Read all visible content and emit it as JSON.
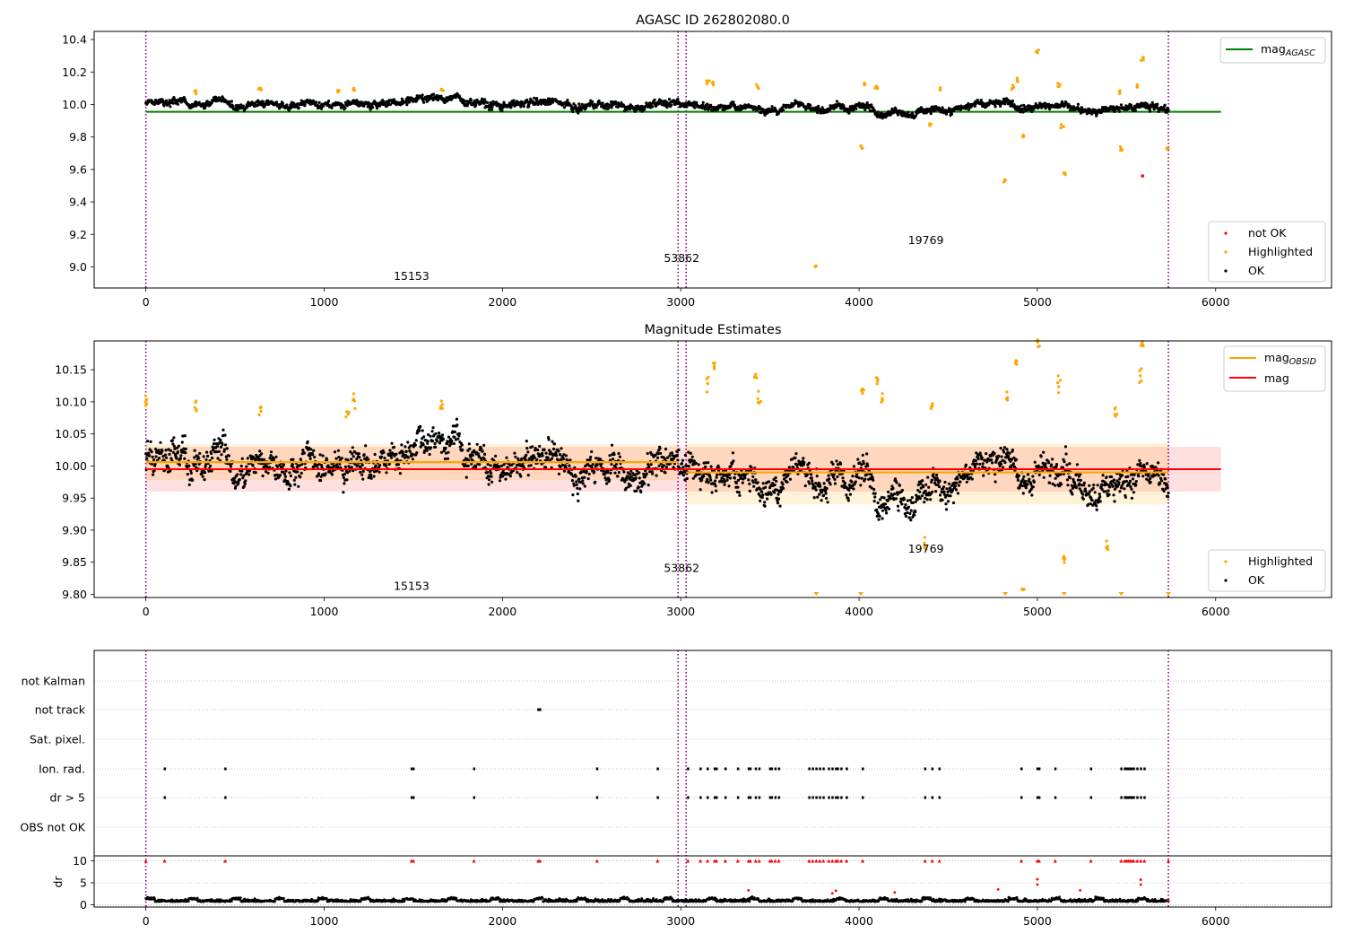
{
  "colors": {
    "ok": "#000000",
    "highlighted": "#ffa500",
    "not_ok": "#ff0000",
    "agasc_line": "#008000",
    "obsid_line": "#ffa500",
    "mean_line": "#ff0000",
    "boundary": "#800080",
    "grid": "#b0b0b0"
  },
  "chart_data": [
    {
      "type": "scatter",
      "title": "AGASC ID 262802080.0",
      "xlim": [
        -290,
        6650
      ],
      "ylim": [
        8.87,
        10.45
      ],
      "xticks": [
        0,
        1000,
        2000,
        3000,
        4000,
        5000,
        6000
      ],
      "yticks": [
        9.0,
        9.2,
        9.4,
        9.6,
        9.8,
        10.0,
        10.2,
        10.4
      ],
      "ytick_labels": [
        "9.0",
        "9.2",
        "9.4",
        "9.6",
        "9.8",
        "10.0",
        "10.2",
        "10.4"
      ],
      "boundaries": [
        0,
        2985,
        3030,
        5735
      ],
      "obsid_labels": [
        {
          "text": "15153",
          "x": 1490,
          "y": 8.92
        },
        {
          "text": "53862",
          "x": 3005,
          "y": 9.03
        },
        {
          "text": "19769",
          "x": 4375,
          "y": 9.14
        }
      ],
      "agasc_mag": {
        "value": 9.955,
        "x_range": [
          0,
          6030
        ]
      },
      "legend_top": {
        "label_main": "mag",
        "label_sub": "AGASC"
      },
      "legend_bottom": [
        "not OK",
        "Highlighted",
        "OK"
      ],
      "highlighted_points": [
        [
          280,
          10.08
        ],
        [
          640,
          10.09
        ],
        [
          1080,
          10.08
        ],
        [
          1165,
          10.09
        ],
        [
          1660,
          10.09
        ],
        [
          3150,
          10.14
        ],
        [
          3180,
          10.13
        ],
        [
          3430,
          10.11
        ],
        [
          3760,
          9.0
        ],
        [
          4010,
          9.74
        ],
        [
          4030,
          10.12
        ],
        [
          4100,
          10.11
        ],
        [
          4400,
          9.88
        ],
        [
          4450,
          10.1
        ],
        [
          4820,
          9.53
        ],
        [
          4860,
          10.11
        ],
        [
          4890,
          10.15
        ],
        [
          4920,
          9.81
        ],
        [
          5000,
          10.33
        ],
        [
          5120,
          10.12
        ],
        [
          5140,
          9.86
        ],
        [
          5150,
          9.58
        ],
        [
          5460,
          10.08
        ],
        [
          5470,
          9.73
        ],
        [
          5560,
          10.11
        ],
        [
          5590,
          10.28
        ],
        [
          5730,
          9.73
        ]
      ],
      "not_ok_points": [
        [
          5590,
          9.56
        ]
      ]
    },
    {
      "type": "scatter",
      "title": "Magnitude Estimates",
      "xlim": [
        -290,
        6650
      ],
      "ylim": [
        9.795,
        10.195
      ],
      "xticks": [
        0,
        1000,
        2000,
        3000,
        4000,
        5000,
        6000
      ],
      "yticks": [
        9.8,
        9.85,
        9.9,
        9.95,
        10.0,
        10.05,
        10.1,
        10.15
      ],
      "ytick_labels": [
        "9.80",
        "9.85",
        "9.90",
        "9.95",
        "10.00",
        "10.05",
        "10.10",
        "10.15"
      ],
      "boundaries": [
        0,
        2985,
        3030,
        5735
      ],
      "obsid_labels": [
        {
          "text": "15153",
          "x": 1490,
          "y": 9.807
        },
        {
          "text": "53862",
          "x": 3005,
          "y": 9.835
        },
        {
          "text": "19769",
          "x": 4375,
          "y": 9.865
        }
      ],
      "mean_mag": {
        "value": 9.995,
        "band": [
          9.96,
          10.03
        ],
        "x_range": [
          0,
          6030
        ]
      },
      "obsid_mags": [
        {
          "x_range": [
            0,
            2985
          ],
          "value": 10.006,
          "band": [
            9.978,
            10.034
          ]
        },
        {
          "x_range": [
            3030,
            5735
          ],
          "value": 9.99,
          "band": [
            9.94,
            10.035
          ]
        }
      ],
      "legend_top": [
        {
          "label_main": "mag",
          "label_sub": "OBSID"
        },
        {
          "label_main": "mag",
          "label_sub": ""
        }
      ],
      "legend_bottom": [
        "Highlighted",
        "OK"
      ],
      "highlighted_points": [
        [
          0,
          10.1
        ],
        [
          280,
          10.09
        ],
        [
          640,
          10.09
        ],
        [
          1130,
          10.08
        ],
        [
          1165,
          10.1
        ],
        [
          1660,
          10.09
        ],
        [
          3150,
          10.13
        ],
        [
          3190,
          10.16
        ],
        [
          3420,
          10.14
        ],
        [
          3440,
          10.1
        ],
        [
          4020,
          10.12
        ],
        [
          4100,
          10.13
        ],
        [
          4130,
          10.1
        ],
        [
          4410,
          10.09
        ],
        [
          4830,
          10.11
        ],
        [
          4880,
          10.16
        ],
        [
          4920,
          9.81
        ],
        [
          5000,
          10.19
        ],
        [
          5120,
          10.13
        ],
        [
          5150,
          9.86
        ],
        [
          5390,
          9.875
        ],
        [
          5440,
          10.085
        ],
        [
          5580,
          10.14
        ],
        [
          5590,
          10.19
        ],
        [
          4370,
          9.88
        ]
      ],
      "clipped_low_points": [
        3760,
        4010,
        4820,
        5150,
        5470,
        5735
      ]
    },
    {
      "type": "scatter",
      "title": "",
      "xlim": [
        -290,
        6650
      ],
      "xticks": [
        0,
        1000,
        2000,
        3000,
        4000,
        5000,
        6000
      ],
      "boundaries": [
        0,
        2985,
        3030,
        5735
      ],
      "flag_rows": [
        "not Kalman",
        "not track",
        "Sat. pixel.",
        "Ion. rad.",
        "dr > 5",
        "OBS not OK"
      ],
      "flag_events": {
        "not track": [
          2200,
          2210
        ],
        "Ion. rad.": [
          105,
          445,
          1490,
          1500,
          1840,
          2530,
          2870,
          3040,
          3110,
          3150,
          3190,
          3200,
          3250,
          3320,
          3380,
          3390,
          3420,
          3440,
          3500,
          3510,
          3530,
          3550,
          3720,
          3740,
          3760,
          3780,
          3800,
          3830,
          3850,
          3870,
          3880,
          3900,
          3930,
          4020,
          4370,
          4410,
          4450,
          4910,
          5000,
          5010,
          5100,
          5300,
          5470,
          5490,
          5500,
          5510,
          5520,
          5530,
          5540,
          5560,
          5580,
          5600
        ],
        "dr > 5": [
          105,
          445,
          1490,
          1500,
          1840,
          2530,
          2870,
          3040,
          3110,
          3150,
          3190,
          3200,
          3250,
          3320,
          3380,
          3390,
          3420,
          3440,
          3500,
          3510,
          3530,
          3550,
          3720,
          3740,
          3760,
          3780,
          3800,
          3830,
          3850,
          3870,
          3880,
          3900,
          3930,
          4020,
          4370,
          4410,
          4450,
          4910,
          5000,
          5010,
          5100,
          5300,
          5470,
          5490,
          5500,
          5510,
          5520,
          5530,
          5540,
          5560,
          5580,
          5600
        ]
      },
      "dr_ylabel": "dr",
      "dr_ylim": [
        -0.5,
        10.5
      ],
      "dr_yticks": [
        0,
        5,
        10
      ],
      "dr_clipped_points": [
        0,
        105,
        445,
        1490,
        1500,
        1840,
        2200,
        2210,
        2530,
        2870,
        3040,
        3110,
        3150,
        3190,
        3200,
        3250,
        3320,
        3380,
        3390,
        3420,
        3440,
        3500,
        3510,
        3530,
        3550,
        3720,
        3740,
        3760,
        3780,
        3800,
        3830,
        3850,
        3870,
        3880,
        3900,
        3930,
        4020,
        4370,
        4410,
        4450,
        4910,
        5000,
        5010,
        5100,
        5300,
        5470,
        5490,
        5500,
        5510,
        5520,
        5530,
        5540,
        5560,
        5580,
        5600,
        5735
      ],
      "dr_red_points": [
        [
          3380,
          3.3
        ],
        [
          3850,
          2.6
        ],
        [
          3870,
          3.2
        ],
        [
          4200,
          2.8
        ],
        [
          4780,
          3.5
        ],
        [
          5000,
          5.8
        ],
        [
          5000,
          4.6
        ],
        [
          5240,
          3.3
        ],
        [
          5580,
          5.7
        ],
        [
          5580,
          4.6
        ],
        [
          5735,
          1.0
        ]
      ]
    }
  ]
}
